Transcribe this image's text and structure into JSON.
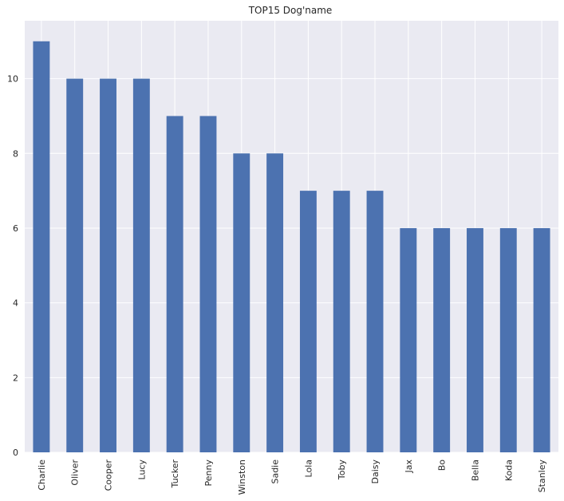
{
  "chart_data": {
    "type": "bar",
    "title": "TOP15 Dog'name",
    "xlabel": "",
    "ylabel": "",
    "categories": [
      "Charlie",
      "Oliver",
      "Cooper",
      "Lucy",
      "Tucker",
      "Penny",
      "Winston",
      "Sadie",
      "Lola",
      "Toby",
      "Daisy",
      "Jax",
      "Bo",
      "Bella",
      "Koda",
      "Stanley"
    ],
    "values": [
      11,
      10,
      10,
      10,
      9,
      9,
      8,
      8,
      7,
      7,
      7,
      6,
      6,
      6,
      6,
      6
    ],
    "y_ticks": [
      0,
      2,
      4,
      6,
      8,
      10
    ],
    "ylim": [
      0,
      11.55
    ],
    "grid": true,
    "legend": "none",
    "colors": {
      "bar": "#4c72b0",
      "plot_background": "#eaeaf2",
      "grid": "#ffffff",
      "text": "#262626"
    }
  }
}
